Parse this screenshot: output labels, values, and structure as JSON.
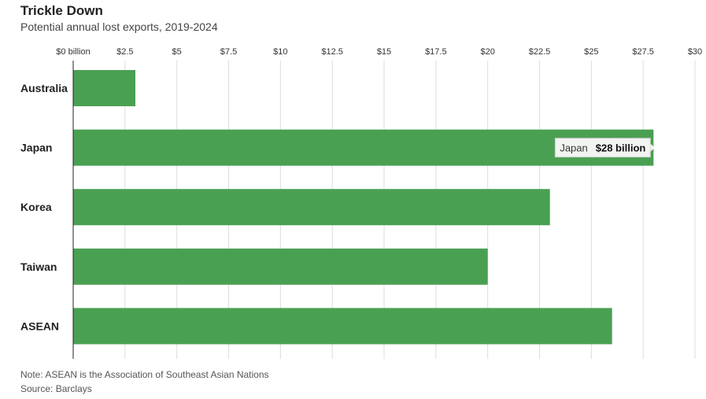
{
  "chart_data": {
    "type": "bar",
    "orientation": "horizontal",
    "title": "Trickle Down",
    "subtitle": "Potential annual lost exports, 2019-2024",
    "categories": [
      "Australia",
      "Japan",
      "Korea",
      "Taiwan",
      "ASEAN"
    ],
    "values": [
      3,
      28,
      23,
      20,
      26
    ],
    "xlim": [
      0,
      30
    ],
    "x_ticks": [
      "$0 billion",
      "$2.5",
      "$5",
      "$7.5",
      "$10",
      "$12.5",
      "$15",
      "$17.5",
      "$20",
      "$22.5",
      "$25",
      "$27.5",
      "$30"
    ],
    "grid": true,
    "bar_color": "#4aa052",
    "tooltip": {
      "category": "Japan",
      "label": "Japan",
      "value_label": "$28 billion"
    }
  },
  "footer": {
    "note": "Note: ASEAN is the Association of Southeast Asian Nations",
    "source": "Source: Barclays"
  }
}
